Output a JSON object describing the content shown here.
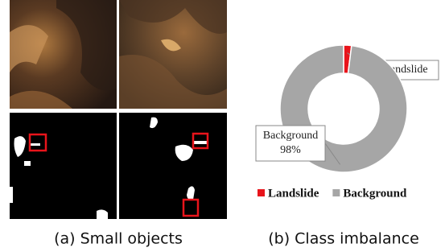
{
  "figure": {
    "captions": [
      "(a) Small objects",
      "(b) Class imbalance"
    ]
  },
  "chart_data": {
    "type": "pie",
    "donut": true,
    "categories": [
      "Landslide",
      "Background"
    ],
    "values": [
      2,
      98
    ],
    "value_labels": [
      null,
      "98%"
    ],
    "colors": [
      "#e8141b",
      "#a6a6a6"
    ],
    "legend": "bottom"
  }
}
